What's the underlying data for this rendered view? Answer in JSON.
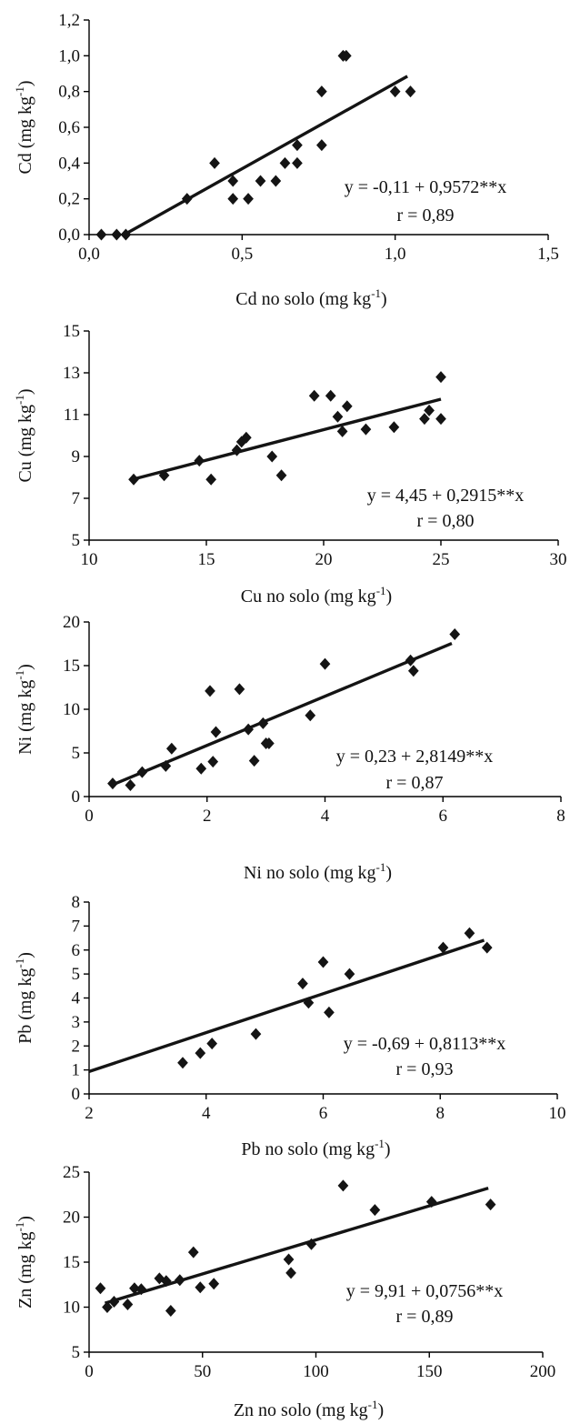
{
  "chart_data": [
    {
      "type": "scatter",
      "xlabel": "Cd no solo (mg kg",
      "ylabel": "Cd (mg kg",
      "label_sup": "-1",
      "xlim": [
        0,
        1.5
      ],
      "ylim": [
        0,
        1.2
      ],
      "x_ticks": [
        0,
        0.5,
        1.0,
        1.5
      ],
      "x_tick_labels": [
        "0,0",
        "0,5",
        "1,0",
        "1,5"
      ],
      "y_ticks": [
        0,
        0.2,
        0.4,
        0.6,
        0.8,
        1.0,
        1.2
      ],
      "y_tick_labels": [
        "0,0",
        "0,2",
        "0,4",
        "0,6",
        "0,8",
        "1,0",
        "1,2"
      ],
      "points": [
        [
          0.04,
          0
        ],
        [
          0.09,
          0
        ],
        [
          0.12,
          0
        ],
        [
          0.32,
          0.2
        ],
        [
          0.41,
          0.4
        ],
        [
          0.47,
          0.3
        ],
        [
          0.47,
          0.2
        ],
        [
          0.52,
          0.2
        ],
        [
          0.56,
          0.3
        ],
        [
          0.61,
          0.3
        ],
        [
          0.64,
          0.4
        ],
        [
          0.68,
          0.4
        ],
        [
          0.68,
          0.5
        ],
        [
          0.76,
          0.5
        ],
        [
          0.76,
          0.8
        ],
        [
          0.83,
          1.0
        ],
        [
          0.84,
          1.0
        ],
        [
          1.0,
          0.8
        ],
        [
          1.05,
          0.8
        ]
      ],
      "fit": {
        "intercept": -0.11,
        "slope": 0.9572,
        "x_range": [
          0.115,
          1.04
        ]
      },
      "equation": "y = -0,11 + 0,9572**x",
      "r_text": "r = 0,89",
      "grid": false,
      "marker": "diamond"
    },
    {
      "type": "scatter",
      "xlabel": "Cu no solo (mg kg",
      "ylabel": "Cu (mg kg",
      "label_sup": "-1",
      "xlim": [
        10,
        30
      ],
      "ylim": [
        5,
        15
      ],
      "x_ticks": [
        10,
        15,
        20,
        25,
        30
      ],
      "x_tick_labels": [
        "10",
        "15",
        "20",
        "25",
        "30"
      ],
      "y_ticks": [
        5,
        7,
        9,
        11,
        13,
        15
      ],
      "y_tick_labels": [
        "5",
        "7",
        "9",
        "11",
        "13",
        "15"
      ],
      "points": [
        [
          11.9,
          7.9
        ],
        [
          13.2,
          8.1
        ],
        [
          14.7,
          8.8
        ],
        [
          15.2,
          7.9
        ],
        [
          16.3,
          9.3
        ],
        [
          16.5,
          9.7
        ],
        [
          16.7,
          9.9
        ],
        [
          17.8,
          9.0
        ],
        [
          18.2,
          8.1
        ],
        [
          19.6,
          11.9
        ],
        [
          20.3,
          11.9
        ],
        [
          20.6,
          10.9
        ],
        [
          20.8,
          10.2
        ],
        [
          21.0,
          11.4
        ],
        [
          21.8,
          10.3
        ],
        [
          23.0,
          10.4
        ],
        [
          24.3,
          10.8
        ],
        [
          24.5,
          11.2
        ],
        [
          25.0,
          12.8
        ],
        [
          25.0,
          10.8
        ]
      ],
      "fit": {
        "intercept": 4.45,
        "slope": 0.2915,
        "x_range": [
          11.9,
          25.0
        ]
      },
      "equation": "y = 4,45 + 0,2915**x",
      "r_text": "r = 0,80",
      "grid": false,
      "marker": "diamond"
    },
    {
      "type": "scatter",
      "xlabel": "Ni no solo (mg kg",
      "ylabel": "Ni (mg kg",
      "label_sup": "-1",
      "xlim": [
        0,
        8
      ],
      "ylim": [
        0,
        20
      ],
      "x_ticks": [
        0,
        2,
        4,
        6,
        8
      ],
      "x_tick_labels": [
        "0",
        "2",
        "4",
        "6",
        "8"
      ],
      "y_ticks": [
        0,
        5,
        10,
        15,
        20
      ],
      "y_tick_labels": [
        "0",
        "5",
        "10",
        "15",
        "20"
      ],
      "points": [
        [
          0.4,
          1.5
        ],
        [
          0.7,
          1.3
        ],
        [
          0.9,
          2.8
        ],
        [
          1.3,
          3.5
        ],
        [
          1.4,
          5.5
        ],
        [
          1.9,
          3.2
        ],
        [
          2.05,
          12.1
        ],
        [
          2.1,
          4.0
        ],
        [
          2.15,
          7.4
        ],
        [
          2.55,
          12.3
        ],
        [
          2.7,
          7.7
        ],
        [
          2.8,
          4.1
        ],
        [
          2.95,
          8.4
        ],
        [
          3.0,
          6.1
        ],
        [
          3.05,
          6.1
        ],
        [
          3.75,
          9.3
        ],
        [
          4.0,
          15.2
        ],
        [
          5.45,
          15.6
        ],
        [
          5.5,
          14.4
        ],
        [
          6.2,
          18.6
        ]
      ],
      "fit": {
        "intercept": 0.23,
        "slope": 2.8149,
        "x_range": [
          0.4,
          6.15
        ]
      },
      "equation": "y = 0,23 + 2,8149**x",
      "r_text": "r = 0,87",
      "grid": false,
      "marker": "diamond"
    },
    {
      "type": "scatter",
      "xlabel": "Pb no solo (mg kg",
      "ylabel": "Pb (mg kg",
      "label_sup": "-1",
      "xlim": [
        2,
        10
      ],
      "ylim": [
        0,
        8
      ],
      "x_ticks": [
        2,
        4,
        6,
        8,
        10
      ],
      "x_tick_labels": [
        "2",
        "4",
        "6",
        "8",
        "10"
      ],
      "y_ticks": [
        0,
        1,
        2,
        3,
        4,
        5,
        6,
        7,
        8
      ],
      "y_tick_labels": [
        "0",
        "1",
        "2",
        "3",
        "4",
        "5",
        "6",
        "7",
        "8"
      ],
      "points": [
        [
          3.6,
          1.3
        ],
        [
          3.9,
          1.7
        ],
        [
          4.1,
          2.1
        ],
        [
          4.85,
          2.5
        ],
        [
          5.65,
          4.6
        ],
        [
          5.75,
          3.8
        ],
        [
          6.0,
          5.5
        ],
        [
          6.1,
          3.4
        ],
        [
          6.45,
          5.0
        ],
        [
          8.05,
          6.1
        ],
        [
          8.5,
          6.7
        ],
        [
          8.8,
          6.1
        ]
      ],
      "fit": {
        "intercept": -0.69,
        "slope": 0.8113,
        "x_range": [
          2.0,
          8.75
        ]
      },
      "equation": "y = -0,69 + 0,8113**x",
      "r_text": "r = 0,93",
      "grid": false,
      "marker": "diamond"
    },
    {
      "type": "scatter",
      "xlabel": "Zn no solo (mg kg",
      "ylabel": "Zn (mg kg",
      "label_sup": "-1",
      "xlim": [
        0,
        200
      ],
      "ylim": [
        5,
        25
      ],
      "x_ticks": [
        0,
        50,
        100,
        150,
        200
      ],
      "x_tick_labels": [
        "0",
        "50",
        "100",
        "150",
        "200"
      ],
      "y_ticks": [
        5,
        10,
        15,
        20,
        25
      ],
      "y_tick_labels": [
        "5",
        "10",
        "15",
        "20",
        "25"
      ],
      "points": [
        [
          5,
          12.1
        ],
        [
          8,
          10.0
        ],
        [
          11,
          10.6
        ],
        [
          17,
          10.3
        ],
        [
          20,
          12.1
        ],
        [
          23,
          12.0
        ],
        [
          31,
          13.2
        ],
        [
          34,
          12.9
        ],
        [
          36,
          9.6
        ],
        [
          40,
          13.0
        ],
        [
          46,
          16.1
        ],
        [
          49,
          12.2
        ],
        [
          55,
          12.6
        ],
        [
          88,
          15.3
        ],
        [
          89,
          13.8
        ],
        [
          98,
          17.0
        ],
        [
          112,
          23.5
        ],
        [
          126,
          20.8
        ],
        [
          151,
          21.7
        ],
        [
          177,
          21.4
        ]
      ],
      "fit": {
        "intercept": 9.91,
        "slope": 0.0756,
        "x_range": [
          7,
          176
        ]
      },
      "equation": "y = 9,91 + 0,0756**x",
      "r_text": "r = 0,89",
      "grid": false,
      "marker": "diamond"
    }
  ]
}
